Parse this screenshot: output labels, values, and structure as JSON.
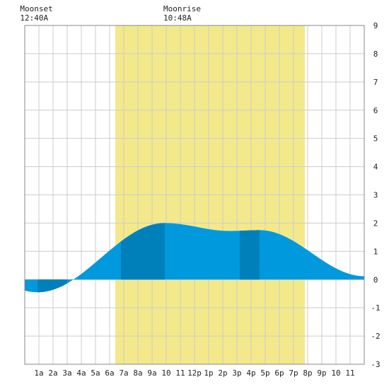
{
  "chart_data": {
    "type": "area",
    "x_tick_labels": [
      "1a",
      "2a",
      "3a",
      "4a",
      "5a",
      "6a",
      "7a",
      "8a",
      "9a",
      "10",
      "11",
      "12p",
      "1p",
      "2p",
      "3p",
      "4p",
      "5p",
      "6p",
      "7p",
      "8p",
      "9p",
      "10",
      "11"
    ],
    "y_ticks": [
      9,
      8,
      7,
      6,
      5,
      4,
      3,
      2,
      1,
      0,
      -1,
      -2,
      -3
    ],
    "ylim": [
      -3,
      9
    ],
    "xlim_hours": [
      0,
      24
    ],
    "grid": true,
    "moon_events": [
      {
        "name": "Moonset",
        "time": "12:40A",
        "hour": 0.667
      },
      {
        "name": "Moonrise",
        "time": "10:48A",
        "hour": 10.8
      }
    ],
    "daylight_hours": [
      6.4,
      19.8
    ],
    "colors": {
      "daylight": "#f3e98a",
      "tide_light": "#0099dd",
      "tide_dark": "#0080bb",
      "grid": "#cccccc",
      "frame": "#888888"
    },
    "tide_extremes": [
      {
        "hour": 0.9,
        "height": -0.45,
        "type": "low"
      },
      {
        "hour": 9.9,
        "height": 2.0,
        "type": "high"
      },
      {
        "hour": 14.5,
        "height": 1.72,
        "type": "low"
      },
      {
        "hour": 16.6,
        "height": 1.75,
        "type": "high"
      },
      {
        "hour": 24.0,
        "height": 0.12,
        "type": "low"
      }
    ],
    "dark_bands": [
      {
        "from": 0.9,
        "to": 3.0
      },
      {
        "from": 6.8,
        "to": 9.9
      },
      {
        "from": 15.2,
        "to": 16.6
      }
    ]
  }
}
